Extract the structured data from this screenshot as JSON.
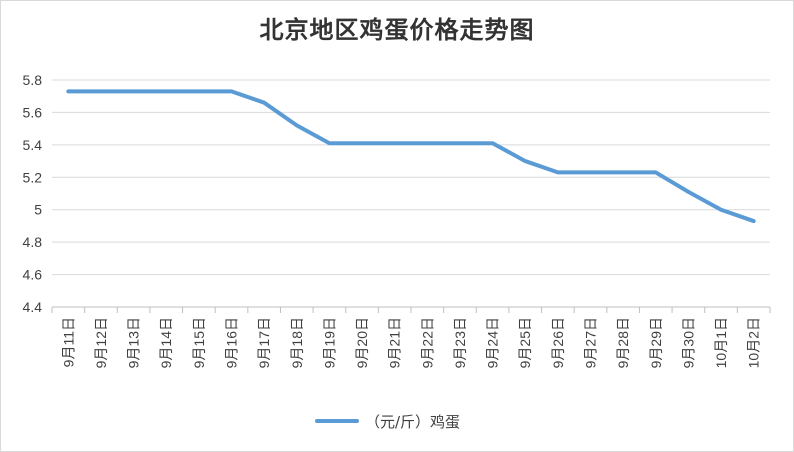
{
  "chart_data": {
    "type": "line",
    "title": "北京地区鸡蛋价格走势图",
    "categories": [
      "9月11日",
      "9月12日",
      "9月13日",
      "9月14日",
      "9月15日",
      "9月16日",
      "9月17日",
      "9月18日",
      "9月19日",
      "9月20日",
      "9月21日",
      "9月22日",
      "9月23日",
      "9月24日",
      "9月25日",
      "9月26日",
      "9月27日",
      "9月28日",
      "9月29日",
      "9月30日",
      "10月1日",
      "10月2日"
    ],
    "series": [
      {
        "name": "（元/斤）鸡蛋",
        "values": [
          5.73,
          5.73,
          5.73,
          5.73,
          5.73,
          5.73,
          5.66,
          5.52,
          5.41,
          5.41,
          5.41,
          5.41,
          5.41,
          5.41,
          5.3,
          5.23,
          5.23,
          5.23,
          5.23,
          5.11,
          5.0,
          4.93
        ]
      }
    ],
    "ylim": [
      4.4,
      5.8
    ],
    "yticks": [
      "4.4",
      "4.6",
      "4.8",
      "5",
      "5.2",
      "5.4",
      "5.6",
      "5.8"
    ],
    "grid": true,
    "legend_position": "bottom",
    "colors": {
      "series": "#5b9bd5",
      "grid": "#d9d9d9"
    }
  }
}
